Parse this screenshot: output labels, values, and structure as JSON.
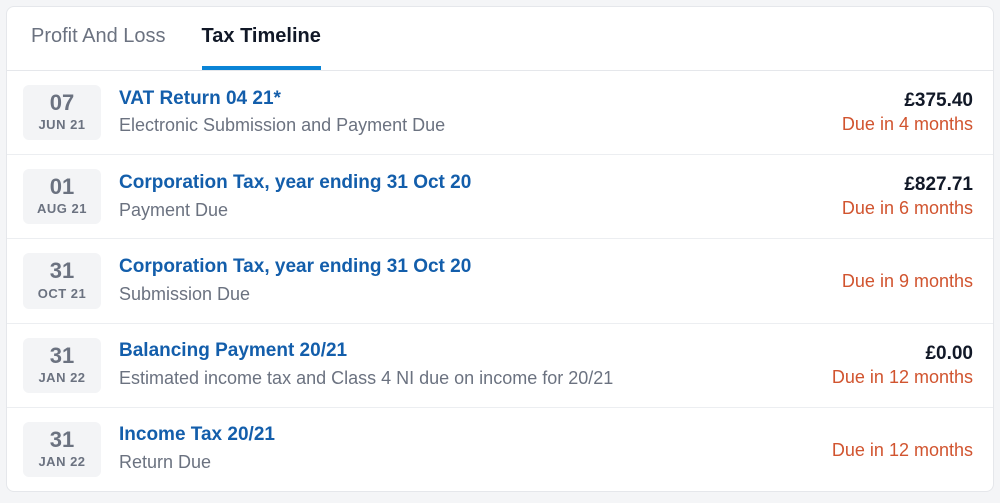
{
  "colors": {
    "link": "#135eab",
    "muted": "#6b7280",
    "text": "#111827",
    "warn": "#d1542f",
    "tab_underline": "#0a84d6",
    "datebox_bg": "#f3f4f6",
    "border": "#e5e7eb",
    "page_bg": "#f4f5f7"
  },
  "tabs": [
    {
      "label": "Profit And Loss",
      "active": false
    },
    {
      "label": "Tax Timeline",
      "active": true
    }
  ],
  "items": [
    {
      "day": "07",
      "mon": "JUN 21",
      "title": "VAT Return 04 21*",
      "subtitle": "Electronic Submission and Payment Due",
      "amount": "£375.40",
      "due": "Due in 4 months",
      "due_color": "#d1542f"
    },
    {
      "day": "01",
      "mon": "AUG 21",
      "title": "Corporation Tax, year ending 31 Oct 20",
      "subtitle": "Payment Due",
      "amount": "£827.71",
      "due": "Due in 6 months",
      "due_color": "#d1542f"
    },
    {
      "day": "31",
      "mon": "OCT 21",
      "title": "Corporation Tax, year ending 31 Oct 20",
      "subtitle": "Submission Due",
      "amount": "",
      "due": "Due in 9 months",
      "due_color": "#d1542f"
    },
    {
      "day": "31",
      "mon": "JAN 22",
      "title": "Balancing Payment 20/21",
      "subtitle": "Estimated income tax and Class 4 NI due on income for 20/21",
      "amount": "£0.00",
      "due": "Due in 12 months",
      "due_color": "#d1542f"
    },
    {
      "day": "31",
      "mon": "JAN 22",
      "title": "Income Tax 20/21",
      "subtitle": "Return Due",
      "amount": "",
      "due": "Due in 12 months",
      "due_color": "#d1542f"
    }
  ]
}
